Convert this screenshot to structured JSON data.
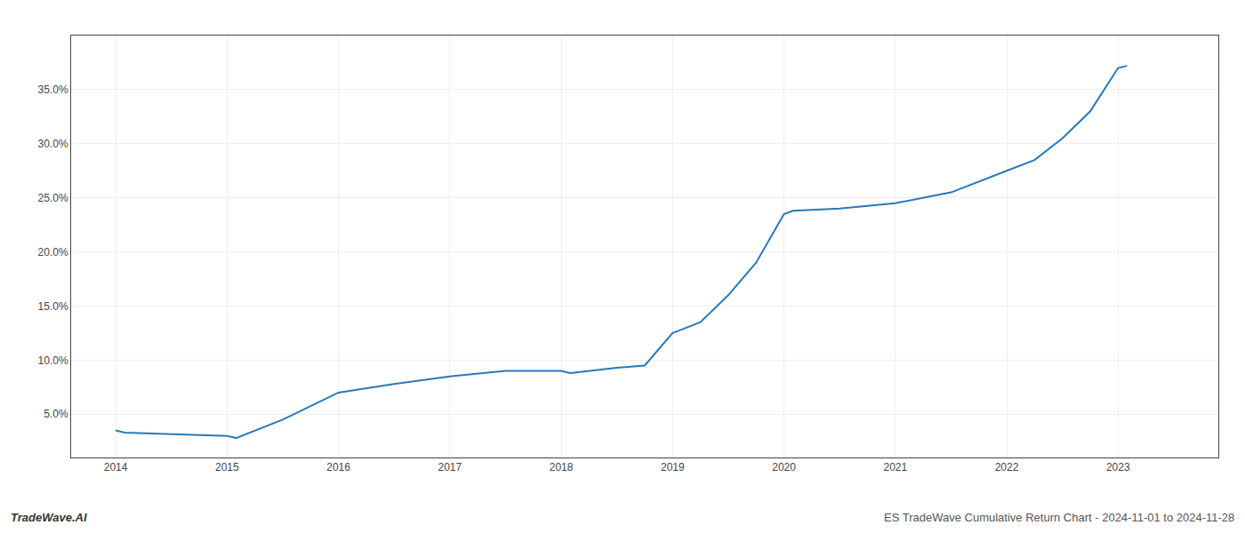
{
  "chart_data": {
    "type": "line",
    "x": [
      2014,
      2014.08,
      2015,
      2015.08,
      2015.5,
      2016,
      2016.5,
      2017,
      2017.5,
      2018,
      2018.08,
      2018.5,
      2018.75,
      2019,
      2019.25,
      2019.5,
      2019.75,
      2020,
      2020.08,
      2020.5,
      2021,
      2021.5,
      2022,
      2022.25,
      2022.5,
      2022.75,
      2023,
      2023.08
    ],
    "values": [
      3.5,
      3.3,
      3.0,
      2.8,
      4.5,
      7.0,
      7.8,
      8.5,
      9.0,
      9.0,
      8.8,
      9.3,
      9.5,
      12.5,
      13.5,
      16.0,
      19.0,
      23.5,
      23.8,
      24.0,
      24.5,
      25.5,
      27.5,
      28.5,
      30.5,
      33.0,
      37.0,
      37.2
    ],
    "color": "#2979b8",
    "xlim": [
      2013.6,
      2023.9
    ],
    "ylim": [
      1.0,
      40.0
    ],
    "xticks": [
      2014,
      2015,
      2016,
      2017,
      2018,
      2019,
      2020,
      2021,
      2022,
      2023
    ],
    "yticks": [
      {
        "value": 5.0,
        "label": "5.0%"
      },
      {
        "value": 10.0,
        "label": "10.0%"
      },
      {
        "value": 15.0,
        "label": "15.0%"
      },
      {
        "value": 20.0,
        "label": "20.0%"
      },
      {
        "value": 25.0,
        "label": "25.0%"
      },
      {
        "value": 30.0,
        "label": "30.0%"
      },
      {
        "value": 35.0,
        "label": "35.0%"
      }
    ],
    "grid": true,
    "annotations": [
      "TradeWave.AI",
      "ES TradeWave Cumulative Return Chart - 2024-11-01 to 2024-11-28"
    ]
  }
}
